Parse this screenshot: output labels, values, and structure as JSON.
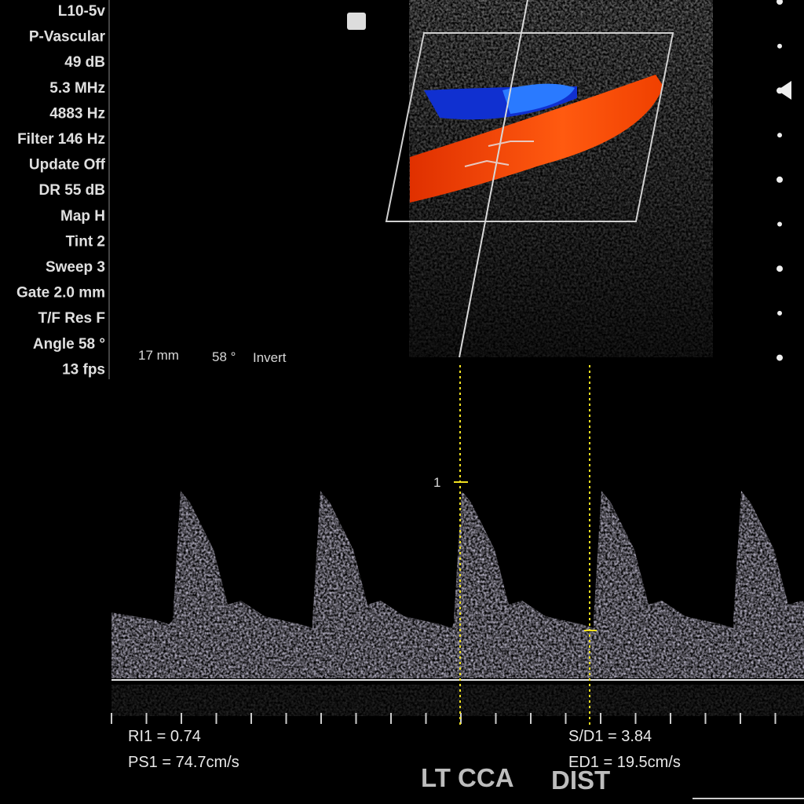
{
  "settings": [
    "L10-5v",
    "P-Vascular",
    "49 dB",
    "5.3 MHz",
    "4883 Hz",
    "Filter 146 Hz",
    "Update Off",
    "DR 55 dB",
    "Map H",
    "Tint 2",
    "Sweep 3",
    "Gate 2.0 mm",
    "T/F Res F",
    "Angle 58 °",
    "13 fps"
  ],
  "status": {
    "depth": "17 mm",
    "angle": "58 °",
    "mode": "Invert"
  },
  "cursor_label": "1",
  "measurements": {
    "ri": "RI1 = 0.74",
    "ps": "PS1 = 74.7cm/s",
    "sd": "S/D1 = 3.84",
    "ed": "ED1 = 19.5cm/s"
  },
  "annotation": {
    "vessel": "LT CCA",
    "location": "DIST"
  }
}
